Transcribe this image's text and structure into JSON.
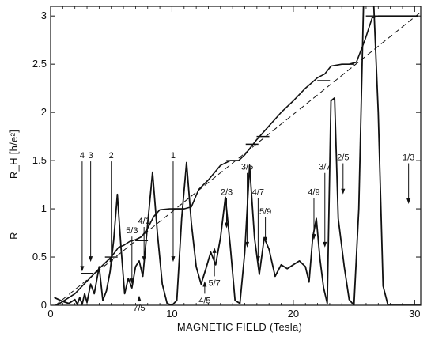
{
  "chart_data": {
    "type": "line",
    "title": "",
    "xlabel": "MAGNETIC FIELD (Tesla)",
    "ylabel": "R_H [h/e²]",
    "ylabel_lower": "R",
    "xlim": [
      0,
      30.5
    ],
    "ylim": [
      0,
      3.1
    ],
    "x_ticks": [
      0,
      10,
      20,
      30
    ],
    "y_ticks": [
      0,
      0.5,
      1,
      1.5,
      2,
      2.5,
      3
    ],
    "x_tick_labels": [
      "0",
      "10",
      "20",
      "30"
    ],
    "y_tick_labels": [
      "0",
      "0.5",
      "1",
      "1.5",
      "2",
      "2.5",
      "3"
    ],
    "series": [
      {
        "key": "hall",
        "style": "solid",
        "x": [
          0.5,
          2,
          3,
          4,
          5,
          5.6,
          6,
          6.5,
          7,
          7.5,
          8,
          8.5,
          9,
          9.8,
          10.5,
          11,
          11.6,
          12.2,
          13,
          14,
          14.8,
          15.5,
          16,
          17,
          18,
          19,
          20,
          21,
          22,
          22.6,
          23.1,
          24,
          24.6,
          25.2,
          25.9,
          26.5,
          27,
          28,
          30.3
        ],
        "y": [
          0.0,
          0.12,
          0.25,
          0.38,
          0.5,
          0.6,
          0.62,
          0.66,
          0.68,
          0.71,
          0.8,
          0.92,
          0.99,
          1.0,
          1.0,
          1.0,
          1.02,
          1.2,
          1.3,
          1.45,
          1.5,
          1.5,
          1.56,
          1.72,
          1.86,
          2.0,
          2.12,
          2.25,
          2.36,
          2.4,
          2.48,
          2.5,
          2.5,
          2.52,
          2.75,
          2.98,
          3.0,
          3.0,
          3.0
        ]
      },
      {
        "key": "classical",
        "style": "dashed",
        "x": [
          0.4,
          30.5
        ],
        "y": [
          0.0,
          3.04
        ]
      },
      {
        "key": "resistance",
        "style": "solid",
        "x": [
          0.3,
          1,
          1.5,
          2,
          2.2,
          2.4,
          2.6,
          2.8,
          3,
          3.3,
          3.6,
          4,
          4.3,
          4.6,
          4.9,
          5.2,
          5.5,
          5.8,
          6.1,
          6.4,
          6.7,
          7,
          7.3,
          7.6,
          8,
          8.4,
          8.8,
          9.2,
          9.6,
          10,
          10.4,
          10.8,
          11.2,
          11.6,
          12,
          12.4,
          12.8,
          13.2,
          13.6,
          14,
          14.4,
          14.8,
          15.2,
          15.6,
          16,
          16.4,
          16.8,
          17.2,
          17.6,
          18,
          18.5,
          19,
          19.5,
          20,
          20.5,
          21,
          21.3,
          21.6,
          21.9,
          22.2,
          22.5,
          22.8,
          23.1,
          23.4,
          23.7,
          24.2,
          24.6,
          25,
          25.4,
          25.8,
          26.2,
          26.6,
          27,
          27.4,
          27.8,
          28.2,
          29,
          30.5
        ],
        "y": [
          0.08,
          0.04,
          0.02,
          0.06,
          0.01,
          0.08,
          0.01,
          0.12,
          0.03,
          0.22,
          0.12,
          0.4,
          0.05,
          0.15,
          0.35,
          0.68,
          1.15,
          0.6,
          0.12,
          0.28,
          0.18,
          0.4,
          0.46,
          0.3,
          0.85,
          1.38,
          0.75,
          0.22,
          0.02,
          0.0,
          0.05,
          0.9,
          1.48,
          0.85,
          0.4,
          0.22,
          0.38,
          0.55,
          0.42,
          0.7,
          1.12,
          0.62,
          0.05,
          0.02,
          0.55,
          1.45,
          0.7,
          0.32,
          0.7,
          0.58,
          0.3,
          0.42,
          0.38,
          0.42,
          0.46,
          0.4,
          0.24,
          0.7,
          0.9,
          0.48,
          0.18,
          0.02,
          2.12,
          2.15,
          0.9,
          0.4,
          0.06,
          0.0,
          1.0,
          3.2,
          3.2,
          3.2,
          2.0,
          0.2,
          0.0,
          0.0,
          0.0,
          0.0
        ]
      }
    ],
    "annotations": [
      {
        "label": "4",
        "x": 2.6
      },
      {
        "label": "3",
        "x": 3.3
      },
      {
        "label": "2",
        "x": 5.0
      },
      {
        "label": "5/3",
        "x": 6.7
      },
      {
        "label": "4/3",
        "x": 7.7
      },
      {
        "label": "7/5",
        "x": 7.3
      },
      {
        "label": "1",
        "x": 10.1
      },
      {
        "label": "4/5",
        "x": 12.7
      },
      {
        "label": "5/7",
        "x": 13.5
      },
      {
        "label": "2/3",
        "x": 14.5
      },
      {
        "label": "3/5",
        "x": 16.2
      },
      {
        "label": "4/7",
        "x": 17.1
      },
      {
        "label": "5/9",
        "x": 17.7
      },
      {
        "label": "4/9",
        "x": 21.7
      },
      {
        "label": "3/7",
        "x": 22.6
      },
      {
        "label": "2/5",
        "x": 24.1
      },
      {
        "label": "1/3",
        "x": 29.5
      }
    ],
    "grid": false,
    "legend": "none"
  }
}
